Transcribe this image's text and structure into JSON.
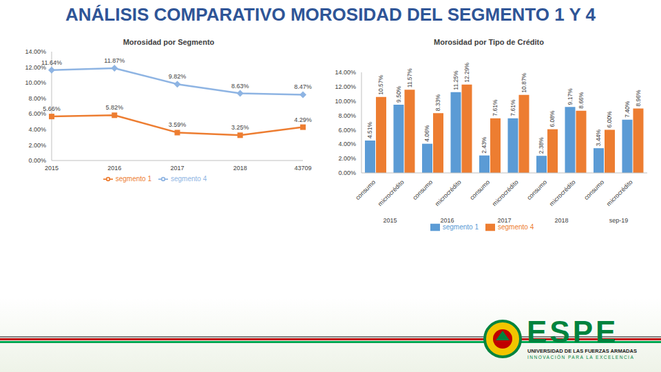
{
  "title": "ANÁLISIS COMPARATIVO MOROSIDAD DEL SEGMENTO 1 Y 4",
  "chart_data": [
    {
      "type": "line",
      "title": "Morosidad por Segmento",
      "categories": [
        "2015",
        "2016",
        "2017",
        "2018",
        "43709"
      ],
      "series": [
        {
          "name": "segmento 4",
          "color": "#8eb4e3",
          "marker": "diamond",
          "values": [
            11.64,
            11.87,
            9.82,
            8.63,
            8.47
          ],
          "value_labels": [
            "11.64%",
            "11.87%",
            "9.82%",
            "8.63%",
            "8.47%"
          ]
        },
        {
          "name": "segmento 1",
          "color": "#ed7d31",
          "marker": "square",
          "values": [
            5.66,
            5.82,
            3.59,
            3.25,
            4.29
          ],
          "value_labels": [
            "5.66%",
            "5.82%",
            "3.59%",
            "3.25%",
            "4.29%"
          ]
        }
      ],
      "ylim": [
        0,
        14
      ],
      "yticks": [
        {
          "value": 0,
          "label": "0.00%"
        },
        {
          "value": 2,
          "label": "2.00%"
        },
        {
          "value": 4,
          "label": "4.00%"
        },
        {
          "value": 6,
          "label": "6.00%"
        },
        {
          "value": 8,
          "label": "8.00%"
        },
        {
          "value": 10,
          "label": "10.00%"
        },
        {
          "value": 12,
          "label": "12.00%"
        },
        {
          "value": 14,
          "label": "14.00%"
        }
      ],
      "grid": false,
      "legend": "bottom",
      "data_labels": true
    },
    {
      "type": "bar",
      "title": "Morosidad por Tipo de Crédito",
      "categories": [
        "consumo",
        "microcrédito",
        "consumo",
        "microcrédito",
        "consumo",
        "microcrédito",
        "consumo",
        "microcrédito",
        "consumo",
        "microcrédito"
      ],
      "groups": [
        "2015",
        "2016",
        "2017",
        "2018",
        "sep-19"
      ],
      "series": [
        {
          "name": "segmento 1",
          "color": "#5b9bd5",
          "values": [
            4.51,
            9.5,
            4.06,
            11.25,
            2.43,
            7.61,
            2.38,
            9.17,
            3.44,
            7.4
          ],
          "value_labels": [
            "4.51%",
            "9.50%",
            "4.06%",
            "11.25%",
            "2.43%",
            "7.61%",
            "2.38%",
            "9.17%",
            "3.44%",
            "7.40%"
          ]
        },
        {
          "name": "segmento 4",
          "color": "#ed7d31",
          "values": [
            10.57,
            11.57,
            8.33,
            12.29,
            7.61,
            10.87,
            6.08,
            8.66,
            6.0,
            8.96
          ],
          "value_labels": [
            "10.57%",
            "11.57%",
            "8.33%",
            "12.29%",
            "7.61%",
            "10.87%",
            "6.08%",
            "8.66%",
            "6.00%",
            "8.96%"
          ]
        }
      ],
      "ylim": [
        0,
        14
      ],
      "yticks": [
        {
          "value": 0,
          "label": "0.00%"
        },
        {
          "value": 2,
          "label": "2.00%"
        },
        {
          "value": 4,
          "label": "4.00%"
        },
        {
          "value": 6,
          "label": "6.00%"
        },
        {
          "value": 8,
          "label": "8.00%"
        },
        {
          "value": 10,
          "label": "10.00%"
        },
        {
          "value": 12,
          "label": "12.00%"
        },
        {
          "value": 14,
          "label": "14.00%"
        }
      ],
      "grid": false,
      "legend": "bottom",
      "data_labels": true
    }
  ],
  "logo": {
    "name": "ESPE",
    "subtitle": "UNIVERSIDAD DE LAS FUERZAS ARMADAS",
    "motto": "INNOVACIÓN PARA LA EXCELENCIA"
  }
}
